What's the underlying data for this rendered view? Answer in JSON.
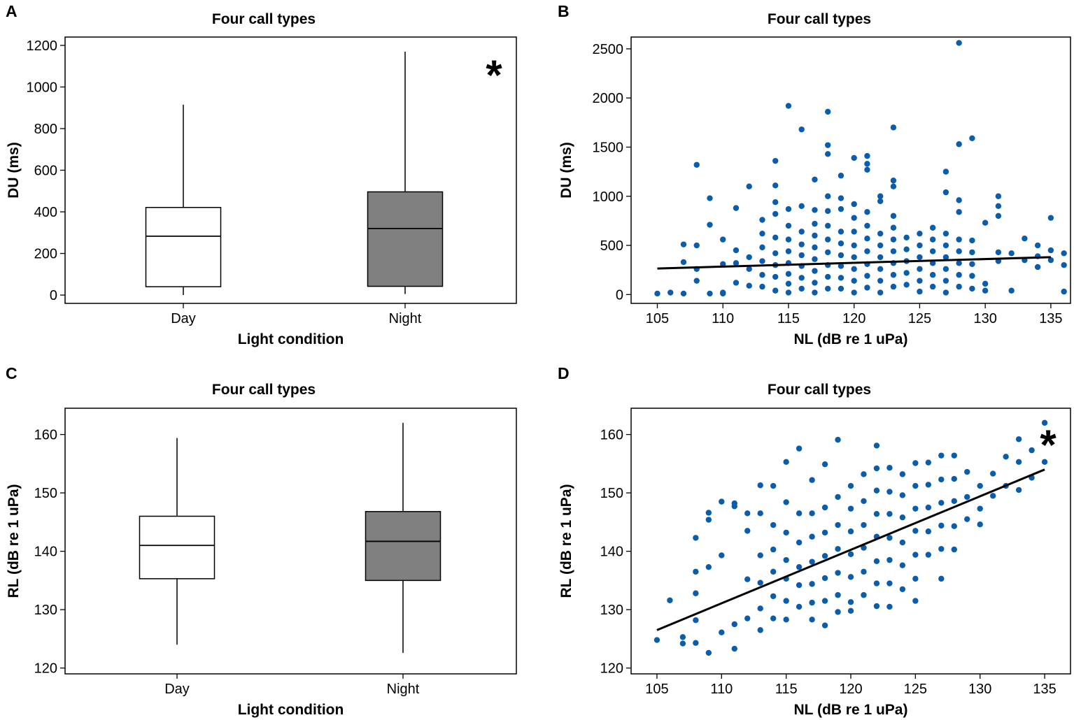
{
  "chart_data": [
    {
      "panel_label": "A",
      "type": "box",
      "title": "Four call types",
      "xlabel": "Light condition",
      "ylabel": "DU (ms)",
      "ylim": [
        -40,
        1240
      ],
      "yticks": [
        0,
        200,
        400,
        600,
        800,
        1000,
        1200
      ],
      "categories": [
        "Day",
        "Night"
      ],
      "boxes": [
        {
          "name": "Day",
          "whisker_low": 0,
          "q1": 40,
          "median": 283,
          "q3": 421,
          "whisker_high": 915,
          "fill": "#ffffff"
        },
        {
          "name": "Night",
          "whisker_low": 5,
          "q1": 42,
          "median": 320,
          "q3": 496,
          "whisker_high": 1170,
          "fill": "#808080"
        }
      ],
      "annotation": "*"
    },
    {
      "panel_label": "B",
      "type": "scatter",
      "title": "Four call types",
      "xlabel": "NL (dB re 1 uPa)",
      "ylabel": "DU (ms)",
      "xlim": [
        103,
        136.5
      ],
      "ylim": [
        -90,
        2620
      ],
      "xticks": [
        105,
        110,
        115,
        120,
        125,
        130,
        135
      ],
      "yticks": [
        0,
        500,
        1000,
        1500,
        2000,
        2500
      ],
      "color": "#0a5cad",
      "trend": {
        "x": [
          105,
          135
        ],
        "y": [
          265,
          380
        ]
      },
      "points": [
        [
          105,
          10
        ],
        [
          106,
          20
        ],
        [
          107,
          10
        ],
        [
          107,
          330
        ],
        [
          107,
          510
        ],
        [
          108,
          260
        ],
        [
          108,
          140
        ],
        [
          108,
          500
        ],
        [
          108,
          1320
        ],
        [
          109,
          980
        ],
        [
          109,
          10
        ],
        [
          109,
          710
        ],
        [
          110,
          20
        ],
        [
          110,
          310
        ],
        [
          110,
          10
        ],
        [
          110,
          560
        ],
        [
          111,
          880
        ],
        [
          111,
          450
        ],
        [
          111,
          320
        ],
        [
          111,
          120
        ],
        [
          112,
          1100
        ],
        [
          112,
          380
        ],
        [
          112,
          260
        ],
        [
          112,
          90
        ],
        [
          113,
          760
        ],
        [
          113,
          620
        ],
        [
          113,
          480
        ],
        [
          113,
          340
        ],
        [
          113,
          200
        ],
        [
          113,
          80
        ],
        [
          114,
          1360
        ],
        [
          114,
          1110
        ],
        [
          114,
          940
        ],
        [
          114,
          820
        ],
        [
          114,
          580
        ],
        [
          114,
          420
        ],
        [
          114,
          300
        ],
        [
          114,
          180
        ],
        [
          114,
          40
        ],
        [
          115,
          1920
        ],
        [
          115,
          870
        ],
        [
          115,
          700
        ],
        [
          115,
          560
        ],
        [
          115,
          440
        ],
        [
          115,
          320
        ],
        [
          115,
          210
        ],
        [
          115,
          110
        ],
        [
          115,
          20
        ],
        [
          116,
          1680
        ],
        [
          116,
          900
        ],
        [
          116,
          640
        ],
        [
          116,
          510
        ],
        [
          116,
          400
        ],
        [
          116,
          290
        ],
        [
          116,
          170
        ],
        [
          116,
          60
        ],
        [
          117,
          1170
        ],
        [
          117,
          860
        ],
        [
          117,
          720
        ],
        [
          117,
          600
        ],
        [
          117,
          480
        ],
        [
          117,
          360
        ],
        [
          117,
          240
        ],
        [
          117,
          120
        ],
        [
          117,
          20
        ],
        [
          118,
          1860
        ],
        [
          118,
          1520
        ],
        [
          118,
          1430
        ],
        [
          118,
          1000
        ],
        [
          118,
          850
        ],
        [
          118,
          700
        ],
        [
          118,
          560
        ],
        [
          118,
          430
        ],
        [
          118,
          300
        ],
        [
          118,
          180
        ],
        [
          118,
          60
        ],
        [
          119,
          1210
        ],
        [
          119,
          980
        ],
        [
          119,
          870
        ],
        [
          119,
          640
        ],
        [
          119,
          520
        ],
        [
          119,
          400
        ],
        [
          119,
          290
        ],
        [
          119,
          170
        ],
        [
          119,
          60
        ],
        [
          120,
          1390
        ],
        [
          120,
          920
        ],
        [
          120,
          780
        ],
        [
          120,
          640
        ],
        [
          120,
          500
        ],
        [
          120,
          380
        ],
        [
          120,
          260
        ],
        [
          120,
          140
        ],
        [
          120,
          20
        ],
        [
          121,
          1410
        ],
        [
          121,
          1330
        ],
        [
          121,
          1270
        ],
        [
          121,
          840
        ],
        [
          121,
          700
        ],
        [
          121,
          570
        ],
        [
          121,
          440
        ],
        [
          121,
          310
        ],
        [
          121,
          190
        ],
        [
          121,
          70
        ],
        [
          122,
          1000
        ],
        [
          122,
          950
        ],
        [
          122,
          620
        ],
        [
          122,
          500
        ],
        [
          122,
          380
        ],
        [
          122,
          260
        ],
        [
          122,
          140
        ],
        [
          122,
          20
        ],
        [
          123,
          1700
        ],
        [
          123,
          1160
        ],
        [
          123,
          1100
        ],
        [
          123,
          800
        ],
        [
          123,
          680
        ],
        [
          123,
          560
        ],
        [
          123,
          440
        ],
        [
          123,
          320
        ],
        [
          123,
          200
        ],
        [
          123,
          80
        ],
        [
          124,
          580
        ],
        [
          124,
          460
        ],
        [
          124,
          340
        ],
        [
          124,
          220
        ],
        [
          124,
          100
        ],
        [
          125,
          620
        ],
        [
          125,
          500
        ],
        [
          125,
          380
        ],
        [
          125,
          260
        ],
        [
          125,
          140
        ],
        [
          125,
          30
        ],
        [
          126,
          680
        ],
        [
          126,
          560
        ],
        [
          126,
          440
        ],
        [
          126,
          320
        ],
        [
          126,
          200
        ],
        [
          126,
          80
        ],
        [
          127,
          1250
        ],
        [
          127,
          1040
        ],
        [
          127,
          620
        ],
        [
          127,
          500
        ],
        [
          127,
          380
        ],
        [
          127,
          260
        ],
        [
          127,
          140
        ],
        [
          127,
          20
        ],
        [
          128,
          2560
        ],
        [
          128,
          1530
        ],
        [
          128,
          960
        ],
        [
          128,
          840
        ],
        [
          128,
          560
        ],
        [
          128,
          440
        ],
        [
          128,
          320
        ],
        [
          128,
          200
        ],
        [
          128,
          80
        ],
        [
          129,
          1590
        ],
        [
          129,
          550
        ],
        [
          129,
          430
        ],
        [
          129,
          310
        ],
        [
          129,
          190
        ],
        [
          129,
          60
        ],
        [
          130,
          730
        ],
        [
          130,
          110
        ],
        [
          130,
          40
        ],
        [
          131,
          1000
        ],
        [
          131,
          900
        ],
        [
          131,
          800
        ],
        [
          131,
          430
        ],
        [
          131,
          340
        ],
        [
          132,
          420
        ],
        [
          132,
          40
        ],
        [
          133,
          570
        ],
        [
          133,
          350
        ],
        [
          134,
          500
        ],
        [
          134,
          390
        ],
        [
          134,
          280
        ],
        [
          135,
          780
        ],
        [
          135,
          450
        ],
        [
          135,
          350
        ],
        [
          136,
          30
        ],
        [
          136,
          420
        ],
        [
          136,
          300
        ]
      ]
    },
    {
      "panel_label": "C",
      "type": "box",
      "title": "Four call types",
      "xlabel": "Light condition",
      "ylabel": "RL (dB re 1 uPa)",
      "ylim": [
        119,
        164.5
      ],
      "yticks": [
        120,
        130,
        140,
        150,
        160
      ],
      "categories": [
        "Day",
        "Night"
      ],
      "boxes": [
        {
          "name": "Day",
          "whisker_low": 124,
          "q1": 135.3,
          "median": 141,
          "q3": 146,
          "whisker_high": 159.4,
          "fill": "#ffffff"
        },
        {
          "name": "Night",
          "whisker_low": 122.6,
          "q1": 135,
          "median": 141.7,
          "q3": 146.8,
          "whisker_high": 162,
          "fill": "#808080"
        }
      ]
    },
    {
      "panel_label": "D",
      "type": "scatter",
      "title": "Four call types",
      "xlabel": "NL (dB re 1 uPa)",
      "ylabel": "RL (dB re 1 uPa)",
      "xlim": [
        103,
        137
      ],
      "ylim": [
        119,
        164.5
      ],
      "xticks": [
        105,
        110,
        115,
        120,
        125,
        130,
        135
      ],
      "yticks": [
        120,
        130,
        140,
        150,
        160
      ],
      "color": "#0a5cad",
      "trend": {
        "x": [
          105,
          135
        ],
        "y": [
          126.5,
          154
        ]
      },
      "annotation": "*",
      "points": [
        [
          105,
          124.8
        ],
        [
          106,
          131.6
        ],
        [
          107,
          124.2
        ],
        [
          107,
          125.3
        ],
        [
          108,
          142.3
        ],
        [
          108,
          136.5
        ],
        [
          108,
          132.8
        ],
        [
          108,
          128.2
        ],
        [
          108,
          124.3
        ],
        [
          109,
          146.6
        ],
        [
          109,
          145.4
        ],
        [
          109,
          137.3
        ],
        [
          109,
          122.6
        ],
        [
          110,
          148.5
        ],
        [
          110,
          139.3
        ],
        [
          110,
          126.1
        ],
        [
          111,
          148.2
        ],
        [
          111,
          147.7
        ],
        [
          111,
          127.5
        ],
        [
          111,
          123.3
        ],
        [
          112,
          146.5
        ],
        [
          112,
          143.5
        ],
        [
          112,
          135.2
        ],
        [
          112,
          128.5
        ],
        [
          113,
          151.3
        ],
        [
          113,
          146.5
        ],
        [
          113,
          139.3
        ],
        [
          113,
          134.6
        ],
        [
          113,
          130.2
        ],
        [
          113,
          126.5
        ],
        [
          114,
          151.2
        ],
        [
          114,
          144.5
        ],
        [
          114,
          140.3
        ],
        [
          114,
          136.5
        ],
        [
          114,
          132.3
        ],
        [
          114,
          128.5
        ],
        [
          115,
          155.3
        ],
        [
          115,
          148.4
        ],
        [
          115,
          143.2
        ],
        [
          115,
          138.5
        ],
        [
          115,
          135.3
        ],
        [
          115,
          131.5
        ],
        [
          115,
          128.3
        ],
        [
          116,
          157.6
        ],
        [
          116,
          146.5
        ],
        [
          116,
          141.5
        ],
        [
          116,
          137.3
        ],
        [
          116,
          134.2
        ],
        [
          116,
          130.5
        ],
        [
          117,
          152.2
        ],
        [
          117,
          146.5
        ],
        [
          117,
          142.5
        ],
        [
          117,
          138.2
        ],
        [
          117,
          134.4
        ],
        [
          117,
          131.2
        ],
        [
          117,
          128.3
        ],
        [
          118,
          154.9
        ],
        [
          118,
          147.5
        ],
        [
          118,
          143.2
        ],
        [
          118,
          139.2
        ],
        [
          118,
          135.4
        ],
        [
          118,
          131.5
        ],
        [
          118,
          127.3
        ],
        [
          119,
          159.1
        ],
        [
          119,
          149.3
        ],
        [
          119,
          144.5
        ],
        [
          119,
          140.4
        ],
        [
          119,
          136.3
        ],
        [
          119,
          132.5
        ],
        [
          119,
          129.6
        ],
        [
          120,
          151.2
        ],
        [
          120,
          147.3
        ],
        [
          120,
          143.4
        ],
        [
          120,
          139.5
        ],
        [
          120,
          135.6
        ],
        [
          120,
          131.3
        ],
        [
          120,
          129.8
        ],
        [
          121,
          153.2
        ],
        [
          121,
          148.6
        ],
        [
          121,
          144.5
        ],
        [
          121,
          140.6
        ],
        [
          121,
          136.5
        ],
        [
          121,
          132.5
        ],
        [
          122,
          158.1
        ],
        [
          122,
          154.2
        ],
        [
          122,
          150.4
        ],
        [
          122,
          146.4
        ],
        [
          122,
          142.5
        ],
        [
          122,
          138.3
        ],
        [
          122,
          134.5
        ],
        [
          122,
          130.6
        ],
        [
          123,
          154.3
        ],
        [
          123,
          150.2
        ],
        [
          123,
          146.4
        ],
        [
          123,
          142.3
        ],
        [
          123,
          138.5
        ],
        [
          123,
          134.5
        ],
        [
          123,
          130.5
        ],
        [
          124,
          153.2
        ],
        [
          124,
          149.6
        ],
        [
          124,
          145.8
        ],
        [
          124,
          141.5
        ],
        [
          124,
          137.6
        ],
        [
          124,
          133.5
        ],
        [
          125,
          155.1
        ],
        [
          125,
          151.2
        ],
        [
          125,
          147.3
        ],
        [
          125,
          143.5
        ],
        [
          125,
          139.4
        ],
        [
          125,
          135.3
        ],
        [
          125,
          131.5
        ],
        [
          126,
          155.2
        ],
        [
          126,
          151.4
        ],
        [
          126,
          147.5
        ],
        [
          126,
          143.4
        ],
        [
          126,
          139.4
        ],
        [
          127,
          156.4
        ],
        [
          127,
          152.3
        ],
        [
          127,
          148.3
        ],
        [
          127,
          144.4
        ],
        [
          127,
          140.4
        ],
        [
          127,
          135.3
        ],
        [
          128,
          156.4
        ],
        [
          128,
          152.4
        ],
        [
          128,
          148.6
        ],
        [
          128,
          144.3
        ],
        [
          128,
          140.3
        ],
        [
          129,
          153.6
        ],
        [
          129,
          149.3
        ],
        [
          129,
          145.5
        ],
        [
          130,
          151.2
        ],
        [
          130,
          147.3
        ],
        [
          130,
          144.6
        ],
        [
          131,
          153.3
        ],
        [
          131,
          149.5
        ],
        [
          132,
          156.2
        ],
        [
          132,
          151.2
        ],
        [
          133,
          159.2
        ],
        [
          133,
          155.3
        ],
        [
          133,
          150.5
        ],
        [
          134,
          157.3
        ],
        [
          134,
          152.6
        ],
        [
          135,
          162
        ],
        [
          135,
          155.3
        ]
      ]
    }
  ]
}
